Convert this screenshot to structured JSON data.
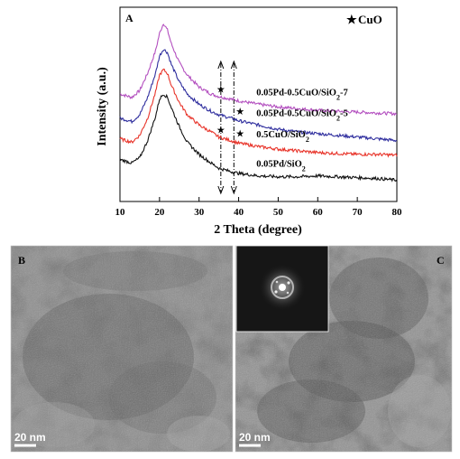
{
  "chart_data": {
    "type": "line",
    "panel_label": "A",
    "xlabel": "2 Theta (degree)",
    "ylabel": "Intensity (a.u.)",
    "xlim": [
      10,
      80
    ],
    "x_ticks": [
      10,
      20,
      30,
      40,
      50,
      60,
      70,
      80
    ],
    "y_ticks_shown": false,
    "legend": {
      "symbol": "★",
      "label": "CuO",
      "placement": "top-right"
    },
    "reference_lines_2theta": [
      35.5,
      38.8
    ],
    "x": [
      10,
      13,
      15,
      17,
      19,
      20,
      21,
      22,
      23,
      25,
      27,
      30,
      33,
      35,
      38,
      40,
      45,
      50,
      55,
      60,
      65,
      70,
      75,
      80
    ],
    "series": [
      {
        "name": "0.05Pd-0.5CuO/SiO2-7",
        "label_main": "0.05Pd-0.5CuO/SiO",
        "label_sub": "2",
        "label_after": "-7",
        "color": "#b34fbf",
        "values": [
          0.55,
          0.53,
          0.57,
          0.67,
          0.8,
          0.9,
          0.96,
          0.92,
          0.84,
          0.73,
          0.66,
          0.59,
          0.55,
          0.535,
          0.52,
          0.51,
          0.49,
          0.475,
          0.465,
          0.455,
          0.45,
          0.445,
          0.44,
          0.435
        ],
        "cuo_peaks_2theta": [
          35.5
        ]
      },
      {
        "name": "0.05Pd-0.5CuO/SiO2-5",
        "label_main": "0.05Pd-0.5CuO/SiO",
        "label_sub": "2",
        "label_after": "-5",
        "color": "#2f2e9e",
        "values": [
          0.41,
          0.39,
          0.43,
          0.53,
          0.67,
          0.77,
          0.81,
          0.79,
          0.72,
          0.62,
          0.55,
          0.49,
          0.45,
          0.43,
          0.41,
          0.395,
          0.37,
          0.345,
          0.33,
          0.32,
          0.31,
          0.3,
          0.29,
          0.28
        ],
        "cuo_peaks_2theta": [
          38.8
        ]
      },
      {
        "name": "0.5CuO/SiO2",
        "label_main": "0.5CuO/SiO",
        "label_sub": "2",
        "label_after": "",
        "color": "#e8342a",
        "values": [
          0.29,
          0.27,
          0.31,
          0.41,
          0.56,
          0.66,
          0.69,
          0.67,
          0.6,
          0.5,
          0.43,
          0.37,
          0.33,
          0.3,
          0.28,
          0.265,
          0.245,
          0.23,
          0.22,
          0.21,
          0.205,
          0.2,
          0.2,
          0.195
        ],
        "cuo_peaks_2theta": [
          35.5,
          38.8
        ]
      },
      {
        "name": "0.05Pd/SiO2",
        "label_main": "0.05Pd/SiO",
        "label_sub": "2",
        "label_after": "",
        "color": "#111111",
        "values": [
          0.17,
          0.15,
          0.18,
          0.28,
          0.42,
          0.52,
          0.55,
          0.53,
          0.47,
          0.36,
          0.27,
          0.2,
          0.15,
          0.12,
          0.1,
          0.09,
          0.075,
          0.07,
          0.07,
          0.075,
          0.07,
          0.065,
          0.06,
          0.05
        ],
        "cuo_peaks_2theta": []
      }
    ]
  },
  "tem_panels": [
    {
      "label": "B",
      "scale_bar": "20 nm",
      "has_fft_inset": false
    },
    {
      "label": "C",
      "scale_bar": "20 nm",
      "has_fft_inset": true
    }
  ]
}
